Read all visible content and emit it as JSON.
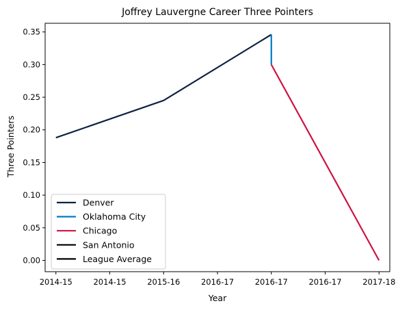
{
  "chart_data": {
    "type": "line",
    "title": "Joffrey Lauvergne Career Three Pointers",
    "xlabel": "Year",
    "ylabel": "Three Pointers",
    "x_tick_labels": [
      "2014-15",
      "2014-15",
      "2015-16",
      "2016-17",
      "2016-17",
      "2016-17",
      "2017-18"
    ],
    "x_range": [
      -0.1,
      3.1
    ],
    "y_ticks": [
      "0.00",
      "0.05",
      "0.10",
      "0.15",
      "0.20",
      "0.25",
      "0.30",
      "0.35"
    ],
    "ylim": [
      -0.0173,
      0.3633
    ],
    "legend_position": "lower-left",
    "series": [
      {
        "name": "Denver",
        "color": "#0E2240",
        "points": [
          [
            0,
            0.188
          ],
          [
            1,
            0.245
          ],
          [
            2,
            0.346
          ]
        ]
      },
      {
        "name": "Oklahoma City",
        "color": "#007AC1",
        "points": [
          [
            2,
            0.346
          ],
          [
            2,
            0.3
          ]
        ]
      },
      {
        "name": "Chicago",
        "color": "#CE1141",
        "points": [
          [
            2,
            0.3
          ],
          [
            3,
            0.0
          ]
        ]
      },
      {
        "name": "San Antonio",
        "color": "#000000",
        "points": []
      },
      {
        "name": "League Average",
        "color": "#000000",
        "points": []
      }
    ]
  }
}
